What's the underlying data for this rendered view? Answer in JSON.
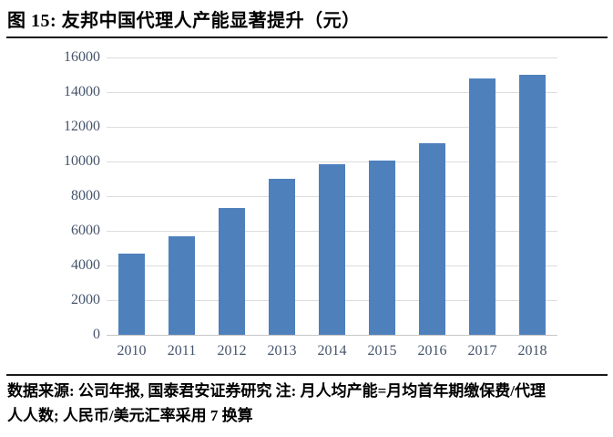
{
  "page": {
    "title": "图 15:  友邦中国代理人产能显著提升（元）",
    "source_note_lines": [
      "数据来源: 公司年报, 国泰君安证券研究  注: 月人均产能=月均首年期缴保费/代理",
      "人人数; 人民币/美元汇率采用 7 换算"
    ]
  },
  "chart_data": {
    "type": "bar",
    "title": "友邦中国代理人产能显著提升（元）",
    "categories": [
      "2010",
      "2011",
      "2012",
      "2013",
      "2014",
      "2015",
      "2016",
      "2017",
      "2018"
    ],
    "values": [
      4700,
      5700,
      7300,
      9000,
      9850,
      10050,
      11050,
      14800,
      15000
    ],
    "xlabel": "",
    "ylabel": "",
    "ylim": [
      0,
      16000
    ],
    "ytick_step": 2000,
    "yticks": [
      0,
      2000,
      4000,
      6000,
      8000,
      10000,
      12000,
      14000,
      16000
    ],
    "grid": true,
    "legend": "none",
    "bar_color": "#4e80bc",
    "gridline_color": "#dcdcdc",
    "axis_label_color": "#44546a"
  }
}
